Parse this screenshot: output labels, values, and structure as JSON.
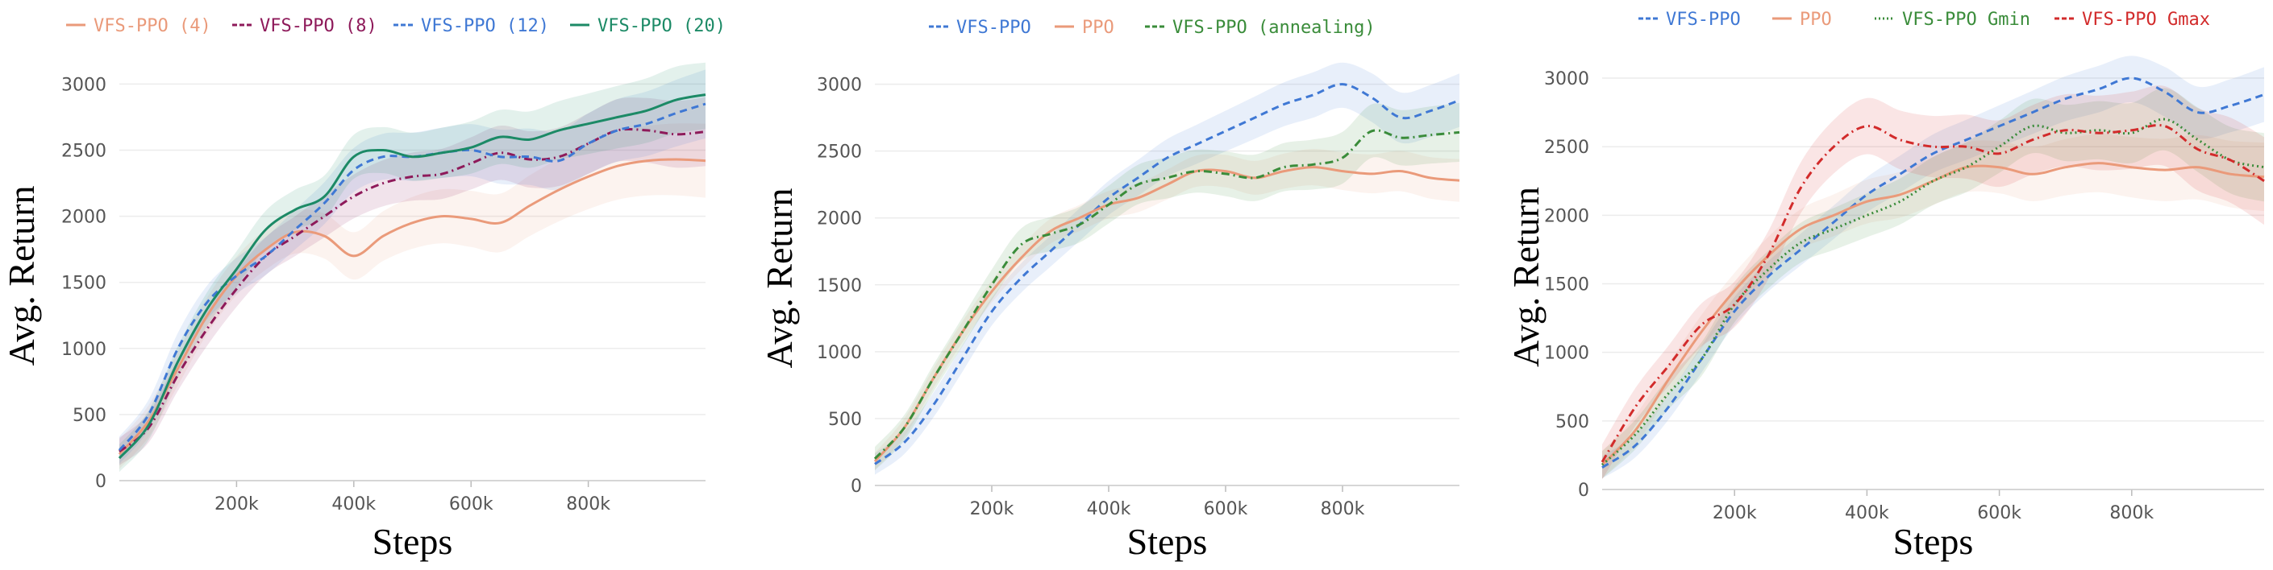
{
  "colors": {
    "orange": "#ea9a7a",
    "purple": "#8e1a5a",
    "blue": "#3f78d4",
    "teal": "#1c8a66",
    "green": "#3a8c3a",
    "red": "#d22b2b",
    "grid": "#ececec",
    "tick": "#555555"
  },
  "chart_data": [
    {
      "type": "line",
      "xlabel": "Steps",
      "ylabel": "Avg. Return",
      "xlim": [
        0,
        1000000
      ],
      "ylim": [
        0,
        3100
      ],
      "xticks": [
        200000,
        400000,
        600000,
        800000
      ],
      "xtick_labels": [
        "200k",
        "400k",
        "600k",
        "800k"
      ],
      "yticks": [
        0,
        500,
        1000,
        1500,
        2000,
        2500,
        3000
      ],
      "ytick_labels": [
        "0",
        "500",
        "1000",
        "1500",
        "2000",
        "2500",
        "3000"
      ],
      "legend_position": "top",
      "x": [
        0,
        50000,
        100000,
        150000,
        200000,
        250000,
        300000,
        350000,
        400000,
        450000,
        500000,
        550000,
        600000,
        650000,
        700000,
        750000,
        800000,
        850000,
        900000,
        950000,
        1000000
      ],
      "series": [
        {
          "name": "VFS-PPO (4)",
          "color": "#ea9a7a",
          "dash": "solid",
          "band": 280,
          "values": [
            200,
            450,
            850,
            1250,
            1550,
            1750,
            1880,
            1850,
            1700,
            1850,
            1950,
            2000,
            1980,
            1950,
            2080,
            2200,
            2300,
            2380,
            2420,
            2430,
            2420
          ]
        },
        {
          "name": "VFS-PPO (8)",
          "color": "#8e1a5a",
          "dash": "dashdot",
          "band": 260,
          "values": [
            220,
            400,
            800,
            1150,
            1450,
            1700,
            1850,
            2000,
            2150,
            2250,
            2300,
            2320,
            2400,
            2480,
            2430,
            2450,
            2550,
            2650,
            2650,
            2620,
            2640
          ]
        },
        {
          "name": "VFS-PPO (12)",
          "color": "#3f78d4",
          "dash": "dash",
          "band": 260,
          "values": [
            230,
            500,
            1000,
            1350,
            1550,
            1700,
            1900,
            2100,
            2350,
            2450,
            2450,
            2480,
            2500,
            2450,
            2450,
            2420,
            2550,
            2650,
            2700,
            2780,
            2850
          ]
        },
        {
          "name": "VFS-PPO (20)",
          "color": "#1c8a66",
          "dash": "solid",
          "band": 260,
          "values": [
            170,
            420,
            900,
            1300,
            1600,
            1900,
            2050,
            2150,
            2450,
            2500,
            2450,
            2480,
            2520,
            2600,
            2580,
            2650,
            2700,
            2750,
            2800,
            2880,
            2920
          ]
        }
      ]
    },
    {
      "type": "line",
      "xlabel": "Steps",
      "ylabel": "Avg. Return",
      "xlim": [
        0,
        1000000
      ],
      "ylim": [
        0,
        3100
      ],
      "xticks": [
        200000,
        400000,
        600000,
        800000
      ],
      "xtick_labels": [
        "200k",
        "400k",
        "600k",
        "800k"
      ],
      "yticks": [
        0,
        500,
        1000,
        1500,
        2000,
        2500,
        3000
      ],
      "ytick_labels": [
        "0",
        "500",
        "1000",
        "1500",
        "2000",
        "2500",
        "3000"
      ],
      "legend_position": "top",
      "x": [
        0,
        50000,
        100000,
        150000,
        200000,
        250000,
        300000,
        350000,
        400000,
        450000,
        500000,
        550000,
        600000,
        650000,
        700000,
        750000,
        800000,
        850000,
        900000,
        950000,
        1000000
      ],
      "series": [
        {
          "name": "VFS-PPO",
          "color": "#3f78d4",
          "dash": "dash",
          "band": 200,
          "values": [
            160,
            320,
            600,
            950,
            1300,
            1550,
            1750,
            1950,
            2150,
            2300,
            2450,
            2550,
            2650,
            2750,
            2850,
            2920,
            3000,
            2900,
            2750,
            2800,
            2880
          ]
        },
        {
          "name": "PPO",
          "color": "#ea9a7a",
          "dash": "solid",
          "band": 160,
          "values": [
            180,
            430,
            800,
            1150,
            1450,
            1700,
            1900,
            2000,
            2100,
            2150,
            2250,
            2350,
            2350,
            2300,
            2350,
            2380,
            2350,
            2330,
            2350,
            2300,
            2280
          ]
        },
        {
          "name": "VFS-PPO (annealing)",
          "color": "#3a8c3a",
          "dash": "dashdot",
          "band": 220,
          "values": [
            200,
            430,
            800,
            1150,
            1500,
            1800,
            1880,
            1950,
            2100,
            2250,
            2300,
            2350,
            2330,
            2300,
            2380,
            2400,
            2450,
            2650,
            2600,
            2620,
            2640
          ]
        }
      ]
    },
    {
      "type": "line",
      "xlabel": "Steps",
      "ylabel": "Avg. Return",
      "xlim": [
        0,
        1000000
      ],
      "ylim": [
        0,
        3100
      ],
      "xticks": [
        200000,
        400000,
        600000,
        800000
      ],
      "xtick_labels": [
        "200k",
        "400k",
        "600k",
        "800k"
      ],
      "yticks": [
        0,
        500,
        1000,
        1500,
        2000,
        2500,
        3000
      ],
      "ytick_labels": [
        "0",
        "500",
        "1000",
        "1500",
        "2000",
        "2500",
        "3000"
      ],
      "legend_position": "top",
      "x": [
        0,
        50000,
        100000,
        150000,
        200000,
        250000,
        300000,
        350000,
        400000,
        450000,
        500000,
        550000,
        600000,
        650000,
        700000,
        750000,
        800000,
        850000,
        900000,
        950000,
        1000000
      ],
      "series": [
        {
          "name": "VFS-PPO",
          "color": "#3f78d4",
          "dash": "dash",
          "band": 200,
          "values": [
            160,
            320,
            600,
            950,
            1300,
            1550,
            1750,
            1950,
            2150,
            2300,
            2450,
            2550,
            2650,
            2750,
            2850,
            2920,
            3000,
            2900,
            2750,
            2800,
            2880
          ]
        },
        {
          "name": "PPO",
          "color": "#ea9a7a",
          "dash": "solid",
          "band": 250,
          "values": [
            180,
            430,
            800,
            1150,
            1450,
            1700,
            1900,
            2000,
            2100,
            2150,
            2250,
            2350,
            2350,
            2300,
            2350,
            2380,
            2350,
            2330,
            2350,
            2300,
            2280
          ]
        },
        {
          "name": "VFS-PPO Gmin",
          "color": "#3a8c3a",
          "dash": "dot",
          "band": 250,
          "values": [
            180,
            400,
            700,
            950,
            1350,
            1600,
            1800,
            1900,
            2000,
            2100,
            2250,
            2350,
            2500,
            2650,
            2600,
            2620,
            2600,
            2700,
            2550,
            2400,
            2350
          ]
        },
        {
          "name": "VFS-PPO Gmax",
          "color": "#d22b2b",
          "dash": "dashdot",
          "band": 320,
          "values": [
            200,
            600,
            900,
            1200,
            1350,
            1700,
            2200,
            2500,
            2650,
            2550,
            2500,
            2500,
            2450,
            2550,
            2620,
            2600,
            2620,
            2650,
            2480,
            2400,
            2250
          ]
        }
      ]
    }
  ]
}
